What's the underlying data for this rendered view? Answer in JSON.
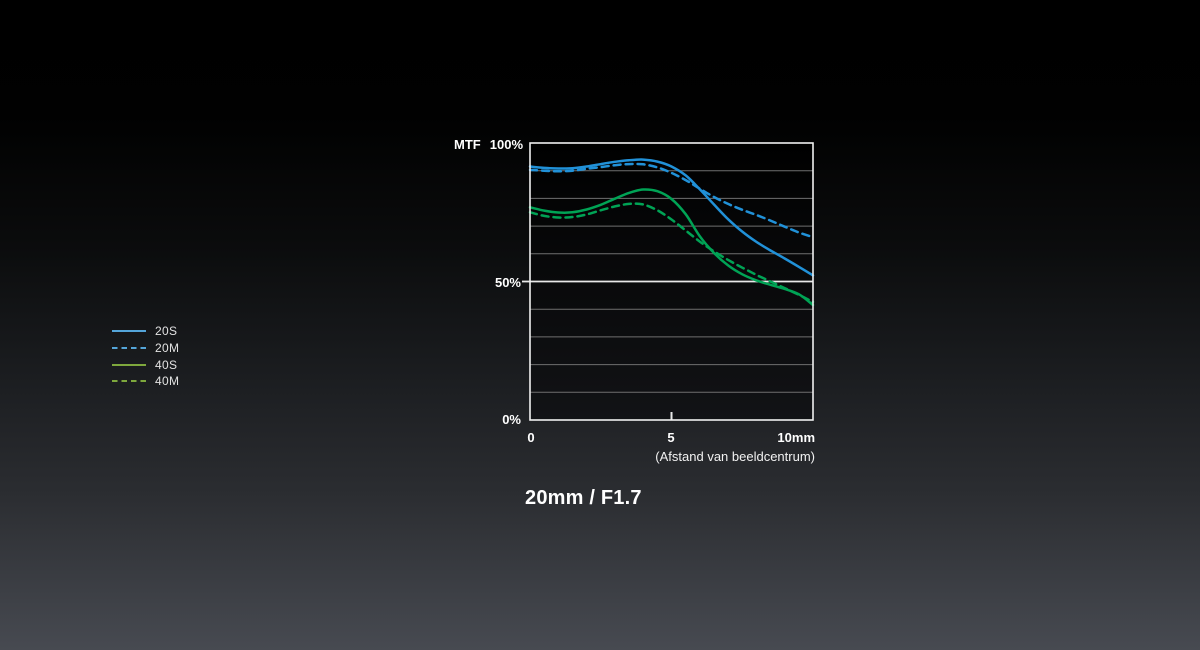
{
  "page": {
    "background_top": "#000000",
    "background_bottom": "#474a51"
  },
  "legend": {
    "items": [
      {
        "label": "20S",
        "color": "#54a5d9",
        "dashed": false
      },
      {
        "label": "20M",
        "color": "#54a5d9",
        "dashed": true
      },
      {
        "label": "40S",
        "color": "#7ea83d",
        "dashed": false
      },
      {
        "label": "40M",
        "color": "#7ea83d",
        "dashed": true
      }
    ]
  },
  "chart": {
    "y_axis_name": "MTF",
    "y_tick_top": "100%",
    "y_tick_mid": "50%",
    "y_tick_bottom": "0%",
    "x_tick_0": "0",
    "x_tick_5": "5",
    "x_tick_10": "10mm",
    "x_axis_caption": "(Afstand van beeldcentrum)",
    "title": "20mm / F1.7",
    "grid_color": "#6f6f6f",
    "emphasis_line_color": "#e8e8e8",
    "border_color": "#f0f0f0",
    "plot_bg_top": "#000000",
    "plot_bg_bottom": "#121316"
  },
  "chart_data": {
    "type": "line",
    "title": "20mm / F1.7",
    "xlabel": "(Afstand van beeldcentrum)",
    "ylabel": "MTF",
    "xlim": [
      0,
      10
    ],
    "ylim": [
      0,
      100
    ],
    "x_ticks": [
      0,
      5,
      10
    ],
    "y_gridline_step_percent": 10,
    "emphasized_gridline_percent": 50,
    "grid": true,
    "legend_position": "left",
    "x": [
      0,
      0.5,
      1,
      1.5,
      2,
      2.5,
      3,
      3.5,
      4,
      4.5,
      5,
      5.5,
      6,
      6.5,
      7,
      7.5,
      8,
      8.5,
      9,
      9.5,
      10
    ],
    "series": [
      {
        "name": "20S",
        "color": "#2191d8",
        "dashed": false,
        "values": [
          91.5,
          91.0,
          90.8,
          90.9,
          91.5,
          92.4,
          93.2,
          93.8,
          94.0,
          93.3,
          91.5,
          88.3,
          83.3,
          77.8,
          72.5,
          68.0,
          64.3,
          61.2,
          58.3,
          55.3,
          52.2
        ]
      },
      {
        "name": "20M",
        "color": "#2191d8",
        "dashed": true,
        "values": [
          90.3,
          90.0,
          89.8,
          90.0,
          90.7,
          91.3,
          92.0,
          92.4,
          92.3,
          91.2,
          89.2,
          86.6,
          83.5,
          80.5,
          78.0,
          75.9,
          74.0,
          72.0,
          69.8,
          67.7,
          66.0
        ]
      },
      {
        "name": "40S",
        "color": "#00a355",
        "dashed": false,
        "values": [
          76.8,
          75.6,
          74.9,
          75.0,
          76.0,
          77.7,
          79.9,
          82.0,
          83.2,
          82.6,
          79.8,
          74.3,
          66.3,
          60.3,
          55.8,
          52.6,
          50.4,
          48.8,
          47.3,
          45.4,
          41.5
        ]
      },
      {
        "name": "40M",
        "color": "#00a355",
        "dashed": true,
        "values": [
          75.0,
          73.7,
          73.1,
          73.3,
          74.2,
          75.7,
          77.1,
          78.0,
          77.8,
          75.7,
          72.4,
          68.4,
          64.4,
          60.9,
          57.8,
          55.0,
          52.4,
          50.0,
          47.6,
          45.2,
          42.6
        ]
      }
    ]
  }
}
